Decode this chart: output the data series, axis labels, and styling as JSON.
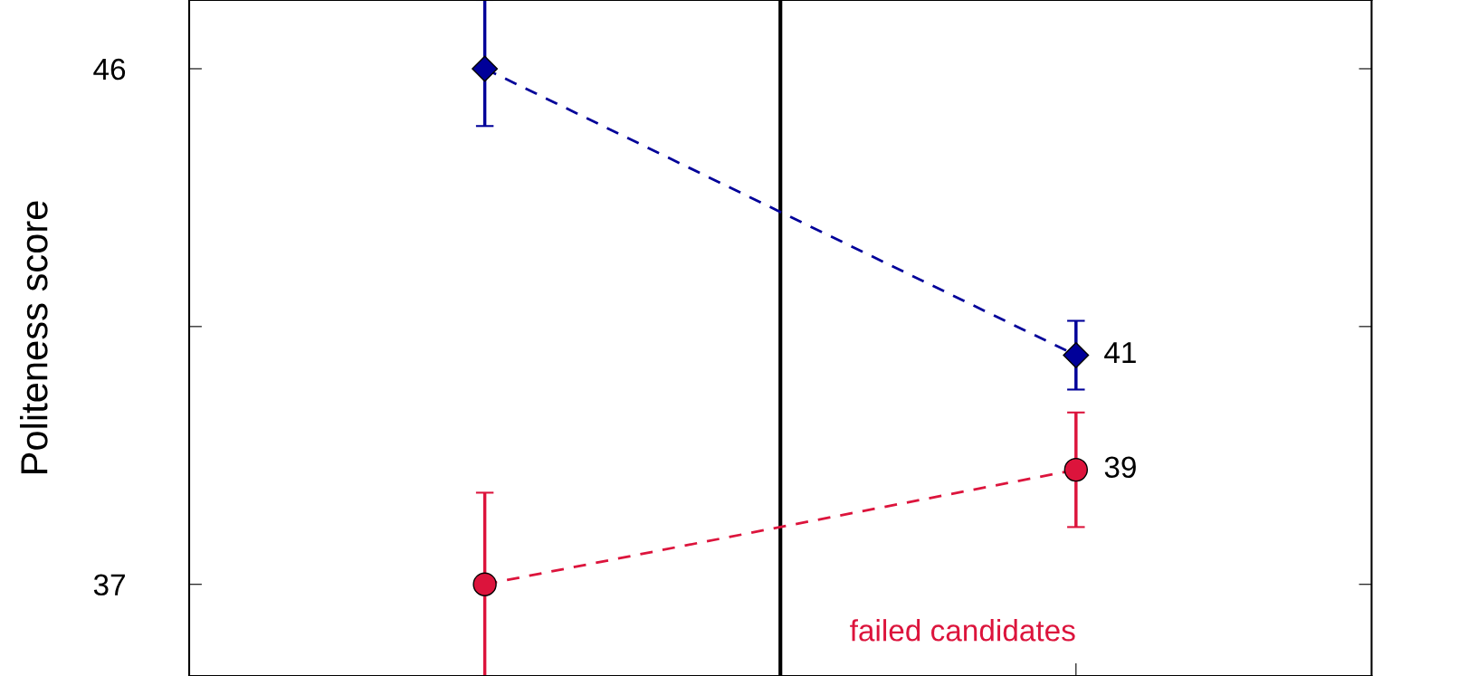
{
  "chart_data": {
    "type": "line",
    "ylabel": "Politeness score",
    "categories": [
      null,
      null
    ],
    "series": [
      {
        "color": "#000099",
        "values": [
          46,
          41
        ],
        "value_labels": [
          null,
          "41"
        ],
        "errors": [
          [
            45,
            47.2
          ],
          0.6
        ],
        "marker": "diamond"
      },
      {
        "name": "failed candidates",
        "color": "#dc143c",
        "values": [
          37,
          39
        ],
        "value_labels": [
          null,
          "39"
        ],
        "errors": [
          1.6,
          1.0
        ],
        "marker": "circle"
      }
    ],
    "line_style": "dashed",
    "grid": false,
    "legend": false,
    "ylim": [
      35.4,
      47.2
    ],
    "yticks": [
      37,
      {
        "value": 41.5,
        "label": null
      },
      46
    ]
  }
}
